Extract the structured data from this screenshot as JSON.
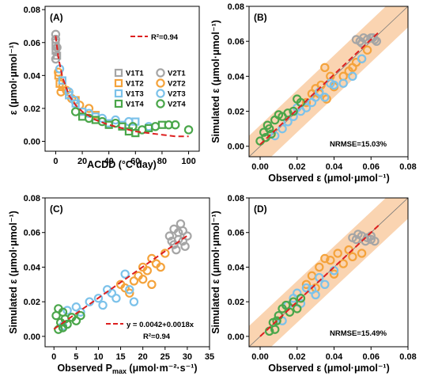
{
  "colors": {
    "T1": "#a5a5a5",
    "T2": "#f4a33c",
    "T3": "#7cc2ea",
    "T4": "#4aa64a",
    "fit": "#dd2020",
    "band": "#f9cfa8",
    "one_to_one": "#777777"
  },
  "chart_data": [
    {
      "type": "scatter",
      "panel_label": "(A)",
      "xlabel": "ACDD (°C·day)",
      "ylabel": "ε (μmol·μmol⁻¹)",
      "xlim": [
        -8,
        108
      ],
      "ylim": [
        -0.006,
        0.082
      ],
      "xticks": [
        0,
        20,
        40,
        60,
        80,
        100
      ],
      "yticks": [
        0.0,
        0.02,
        0.04,
        0.06,
        0.08
      ],
      "xtick_labels": [
        "0",
        "20",
        "40",
        "60",
        "80",
        "100"
      ],
      "ytick_labels": [
        "0.00",
        "0.02",
        "0.04",
        "0.06",
        "0.08"
      ],
      "fit": {
        "label": "R²=0.94",
        "x": [
          0,
          2,
          5,
          10,
          15,
          20,
          30,
          40,
          50,
          60,
          70,
          80,
          90,
          100
        ],
        "y": [
          0.064,
          0.051,
          0.039,
          0.028,
          0.022,
          0.018,
          0.013,
          0.01,
          0.008,
          0.006,
          0.005,
          0.004,
          0.003,
          0.003
        ]
      },
      "legend": {
        "placement": "center-right",
        "entries": [
          "V1T1",
          "V2T1",
          "V1T2",
          "V2T2",
          "V1T3",
          "V2T3",
          "V1T4",
          "V2T4"
        ]
      },
      "series": [
        {
          "name": "V1T1",
          "points": [
            [
              0,
              0.055
            ],
            [
              0,
              0.06
            ],
            [
              1,
              0.052
            ],
            [
              0,
              0.058
            ]
          ]
        },
        {
          "name": "V2T1",
          "points": [
            [
              0,
              0.065
            ],
            [
              0,
              0.062
            ],
            [
              1,
              0.057
            ],
            [
              0,
              0.05
            ]
          ]
        },
        {
          "name": "V1T2",
          "points": [
            [
              2,
              0.04
            ],
            [
              3,
              0.035
            ],
            [
              5,
              0.033
            ],
            [
              10,
              0.028
            ],
            [
              15,
              0.025
            ],
            [
              20,
              0.018
            ],
            [
              30,
              0.016
            ]
          ]
        },
        {
          "name": "V2T2",
          "points": [
            [
              2,
              0.042
            ],
            [
              4,
              0.03
            ],
            [
              8,
              0.031
            ],
            [
              12,
              0.026
            ],
            [
              18,
              0.022
            ],
            [
              25,
              0.02
            ]
          ]
        },
        {
          "name": "V1T3",
          "points": [
            [
              5,
              0.037
            ],
            [
              10,
              0.028
            ],
            [
              15,
              0.023
            ],
            [
              20,
              0.018
            ],
            [
              30,
              0.015
            ],
            [
              40,
              0.011
            ],
            [
              50,
              0.01
            ],
            [
              60,
              0.012
            ]
          ]
        },
        {
          "name": "V2T3",
          "points": [
            [
              3,
              0.044
            ],
            [
              10,
              0.03
            ],
            [
              14,
              0.025
            ],
            [
              25,
              0.017
            ],
            [
              35,
              0.014
            ],
            [
              45,
              0.013
            ],
            [
              55,
              0.012
            ],
            [
              70,
              0.009
            ]
          ]
        },
        {
          "name": "V1T4",
          "points": [
            [
              20,
              0.015
            ],
            [
              30,
              0.013
            ],
            [
              40,
              0.01
            ],
            [
              50,
              0.009
            ],
            [
              55,
              0.006
            ],
            [
              60,
              0.005
            ],
            [
              70,
              0.008
            ],
            [
              80,
              0.01
            ]
          ]
        },
        {
          "name": "V2T4",
          "points": [
            [
              15,
              0.018
            ],
            [
              25,
              0.014
            ],
            [
              35,
              0.012
            ],
            [
              45,
              0.011
            ],
            [
              58,
              0.009
            ],
            [
              65,
              0.007
            ],
            [
              75,
              0.009
            ],
            [
              85,
              0.01
            ],
            [
              90,
              0.01
            ],
            [
              100,
              0.007
            ]
          ]
        }
      ]
    },
    {
      "type": "scatter",
      "panel_label": "(B)",
      "xlabel": "Observed ε (μmol·μmol⁻¹)",
      "ylabel": "Simulated ε (μmol·μmol⁻¹)",
      "xlim": [
        -0.006,
        0.08
      ],
      "ylim": [
        -0.006,
        0.08
      ],
      "xticks": [
        0.0,
        0.02,
        0.04,
        0.06,
        0.08
      ],
      "yticks": [
        0.0,
        0.02,
        0.04,
        0.06,
        0.08
      ],
      "xtick_labels": [
        "0.00",
        "0.02",
        "0.04",
        "0.06",
        "0.08"
      ],
      "ytick_labels": [
        "0.00",
        "0.02",
        "0.04",
        "0.06",
        "0.08"
      ],
      "annotation": "NRMSE=15.03%",
      "band_halfwidth": 0.012,
      "fit": {
        "x": [
          0.0,
          0.065
        ],
        "y": [
          0.001,
          0.066
        ]
      },
      "series": [
        {
          "name": "T1",
          "points": [
            [
              0.052,
              0.061
            ],
            [
              0.054,
              0.06
            ],
            [
              0.056,
              0.062
            ],
            [
              0.058,
              0.061
            ],
            [
              0.06,
              0.062
            ],
            [
              0.062,
              0.061
            ],
            [
              0.063,
              0.06
            ],
            [
              0.055,
              0.059
            ],
            [
              0.061,
              0.062
            ]
          ]
        },
        {
          "name": "T2",
          "points": [
            [
              0.025,
              0.025
            ],
            [
              0.028,
              0.03
            ],
            [
              0.03,
              0.033
            ],
            [
              0.033,
              0.035
            ],
            [
              0.035,
              0.045
            ],
            [
              0.038,
              0.04
            ],
            [
              0.04,
              0.034
            ],
            [
              0.045,
              0.04
            ],
            [
              0.048,
              0.043
            ],
            [
              0.05,
              0.045
            ],
            [
              0.052,
              0.048
            ],
            [
              0.055,
              0.05
            ],
            [
              0.058,
              0.055
            ],
            [
              0.032,
              0.03
            ],
            [
              0.036,
              0.027
            ]
          ]
        },
        {
          "name": "T3",
          "points": [
            [
              0.008,
              0.006
            ],
            [
              0.012,
              0.01
            ],
            [
              0.015,
              0.014
            ],
            [
              0.018,
              0.017
            ],
            [
              0.02,
              0.022
            ],
            [
              0.022,
              0.02
            ],
            [
              0.025,
              0.022
            ],
            [
              0.028,
              0.025
            ],
            [
              0.03,
              0.028
            ],
            [
              0.032,
              0.031
            ],
            [
              0.035,
              0.028
            ],
            [
              0.038,
              0.036
            ],
            [
              0.04,
              0.035
            ],
            [
              0.045,
              0.036
            ],
            [
              0.05,
              0.04
            ],
            [
              0.055,
              0.05
            ]
          ]
        },
        {
          "name": "T4",
          "points": [
            [
              0.0,
              0.003
            ],
            [
              0.002,
              0.008
            ],
            [
              0.003,
              0.005
            ],
            [
              0.005,
              0.01
            ],
            [
              0.006,
              0.007
            ],
            [
              0.008,
              0.015
            ],
            [
              0.01,
              0.018
            ],
            [
              0.012,
              0.017
            ],
            [
              0.015,
              0.019
            ],
            [
              0.018,
              0.02
            ],
            [
              0.02,
              0.027
            ],
            [
              0.022,
              0.025
            ],
            [
              0.004,
              0.012
            ]
          ]
        }
      ]
    },
    {
      "type": "scatter",
      "panel_label": "(C)",
      "xlabel": "Observed Pmax (μmol·m⁻²·s⁻¹)",
      "xlabel_parts": {
        "pre": "Observed P",
        "sub": "max",
        "post": " (μmol·m⁻²·s⁻¹)"
      },
      "ylabel": "Simulated ε (μmol·μmol⁻¹)",
      "xlim": [
        -2,
        35
      ],
      "ylim": [
        -0.006,
        0.08
      ],
      "xticks": [
        0,
        5,
        10,
        15,
        20,
        25,
        30,
        35
      ],
      "yticks": [
        0.0,
        0.02,
        0.04,
        0.06,
        0.08
      ],
      "xtick_labels": [
        "0",
        "5",
        "10",
        "15",
        "20",
        "25",
        "30",
        "35"
      ],
      "ytick_labels": [
        "0.00",
        "0.02",
        "0.04",
        "0.06",
        "0.08"
      ],
      "fit": {
        "label": "y = 0.0042+0.0018x",
        "r2_label": "R²=0.94",
        "x": [
          0,
          30
        ],
        "y": [
          0.0042,
          0.0582
        ]
      },
      "series": [
        {
          "name": "T1",
          "points": [
            [
              26,
              0.058
            ],
            [
              27,
              0.062
            ],
            [
              28,
              0.06
            ],
            [
              29,
              0.055
            ],
            [
              30,
              0.058
            ],
            [
              27.5,
              0.05
            ],
            [
              28.5,
              0.065
            ],
            [
              29.5,
              0.052
            ],
            [
              26.5,
              0.055
            ],
            [
              28,
              0.056
            ],
            [
              29,
              0.061
            ],
            [
              27,
              0.053
            ]
          ]
        },
        {
          "name": "T2",
          "points": [
            [
              15,
              0.03
            ],
            [
              16,
              0.028
            ],
            [
              17,
              0.025
            ],
            [
              18,
              0.032
            ],
            [
              19,
              0.035
            ],
            [
              20,
              0.04
            ],
            [
              21,
              0.038
            ],
            [
              22,
              0.045
            ],
            [
              23,
              0.042
            ],
            [
              24,
              0.04
            ],
            [
              25,
              0.048
            ],
            [
              20,
              0.033
            ],
            [
              22,
              0.03
            ]
          ]
        },
        {
          "name": "T3",
          "points": [
            [
              2,
              0.006
            ],
            [
              3,
              0.015
            ],
            [
              5,
              0.017
            ],
            [
              6,
              0.014
            ],
            [
              8,
              0.02
            ],
            [
              10,
              0.022
            ],
            [
              11,
              0.018
            ],
            [
              13,
              0.025
            ],
            [
              14,
              0.022
            ],
            [
              16,
              0.036
            ],
            [
              17,
              0.027
            ],
            [
              18,
              0.02
            ],
            [
              12,
              0.027
            ]
          ]
        },
        {
          "name": "T4",
          "points": [
            [
              0.5,
              0.012
            ],
            [
              1,
              0.016
            ],
            [
              1.5,
              0.008
            ],
            [
              2,
              0.014
            ],
            [
              2.5,
              0.01
            ],
            [
              3,
              0.007
            ],
            [
              4,
              0.011
            ],
            [
              5,
              0.009
            ],
            [
              6,
              0.012
            ],
            [
              1,
              0.004
            ],
            [
              2,
              0.005
            ]
          ]
        }
      ]
    },
    {
      "type": "scatter",
      "panel_label": "(D)",
      "xlabel": "Observed ε (μmol·μmol⁻¹)",
      "ylabel": "Simulated ε (μmol·μmol⁻¹)",
      "xlim": [
        -0.006,
        0.08
      ],
      "ylim": [
        -0.006,
        0.08
      ],
      "xticks": [
        0.0,
        0.02,
        0.04,
        0.06,
        0.08
      ],
      "yticks": [
        0.0,
        0.02,
        0.04,
        0.06,
        0.08
      ],
      "xtick_labels": [
        "0.00",
        "0.02",
        "0.04",
        "0.06",
        "0.08"
      ],
      "ytick_labels": [
        "0.00",
        "0.02",
        "0.04",
        "0.06",
        "0.08"
      ],
      "annotation": "NRMSE=15.49%",
      "band_halfwidth": 0.012,
      "fit": {
        "x": [
          0.0,
          0.065
        ],
        "y": [
          0.0,
          0.065
        ]
      },
      "series": [
        {
          "name": "T1",
          "points": [
            [
              0.05,
              0.057
            ],
            [
              0.052,
              0.056
            ],
            [
              0.055,
              0.058
            ],
            [
              0.058,
              0.057
            ],
            [
              0.06,
              0.056
            ],
            [
              0.062,
              0.055
            ],
            [
              0.053,
              0.059
            ],
            [
              0.057,
              0.055
            ],
            [
              0.06,
              0.058
            ]
          ]
        },
        {
          "name": "T2",
          "points": [
            [
              0.025,
              0.03
            ],
            [
              0.028,
              0.035
            ],
            [
              0.03,
              0.028
            ],
            [
              0.032,
              0.04
            ],
            [
              0.035,
              0.045
            ],
            [
              0.038,
              0.044
            ],
            [
              0.04,
              0.036
            ],
            [
              0.042,
              0.048
            ],
            [
              0.045,
              0.042
            ],
            [
              0.048,
              0.05
            ],
            [
              0.05,
              0.046
            ],
            [
              0.055,
              0.048
            ]
          ]
        },
        {
          "name": "T3",
          "points": [
            [
              0.01,
              0.012
            ],
            [
              0.012,
              0.009
            ],
            [
              0.015,
              0.018
            ],
            [
              0.018,
              0.022
            ],
            [
              0.02,
              0.025
            ],
            [
              0.022,
              0.019
            ],
            [
              0.025,
              0.028
            ],
            [
              0.028,
              0.027
            ],
            [
              0.03,
              0.024
            ],
            [
              0.032,
              0.034
            ],
            [
              0.035,
              0.03
            ],
            [
              0.04,
              0.038
            ]
          ]
        },
        {
          "name": "T4",
          "points": [
            [
              0.005,
              0.003
            ],
            [
              0.007,
              0.008
            ],
            [
              0.008,
              0.004
            ],
            [
              0.01,
              0.012
            ],
            [
              0.012,
              0.016
            ],
            [
              0.014,
              0.018
            ],
            [
              0.016,
              0.014
            ],
            [
              0.018,
              0.02
            ],
            [
              0.02,
              0.016
            ],
            [
              0.022,
              0.022
            ],
            [
              0.009,
              0.009
            ]
          ]
        }
      ]
    }
  ]
}
